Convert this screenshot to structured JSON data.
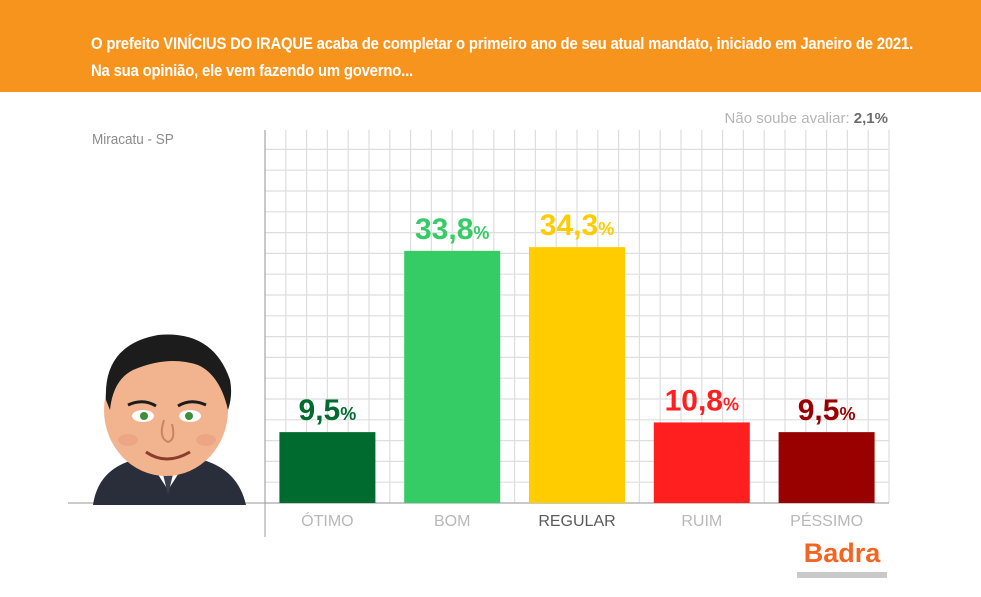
{
  "header": {
    "line1": "O prefeito VINÍCIUS DO IRAQUE acaba de completar o primeiro ano de seu atual mandato, iniciado em Janeiro de 2021.",
    "line2": "Na sua opinião, ele vem fazendo um governo..."
  },
  "subtitle": "Miracatu - SP",
  "nao_soube": {
    "label": "Não soube avaliar:",
    "value": "2,1%"
  },
  "brand": "Badra",
  "colors": {
    "banner": "#f7941e",
    "brand": "#f26522"
  },
  "chart_data": {
    "type": "bar",
    "categories": [
      "ÓTIMO",
      "BOM",
      "REGULAR",
      "RUIM",
      "PÉSSIMO"
    ],
    "values": [
      9.5,
      33.8,
      34.3,
      10.8,
      9.5
    ],
    "value_labels": [
      "9,5",
      "33,8",
      "34,3",
      "10,8",
      "9,5"
    ],
    "unit": "%",
    "bar_colors": [
      "#006b2f",
      "#35cc65",
      "#ffcc00",
      "#ff1f1f",
      "#990000"
    ],
    "label_colors": [
      "#006b2f",
      "#35cc65",
      "#ffcc00",
      "#ff1f1f",
      "#990000"
    ],
    "category_colors": [
      "#b8b8b8",
      "#b8b8b8",
      "#5a5a5a",
      "#b8b8b8",
      "#b8b8b8"
    ],
    "ylim": [
      0,
      50
    ],
    "grid": true
  }
}
